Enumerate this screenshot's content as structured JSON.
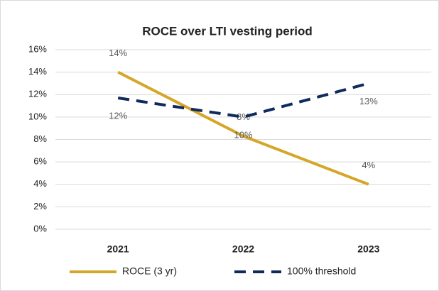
{
  "chart_data": {
    "type": "line",
    "title": "ROCE over LTI vesting period",
    "categories": [
      "2021",
      "2022",
      "2023"
    ],
    "series": [
      {
        "name": "ROCE (3 yr)",
        "color": "#d4a62a",
        "dash": false,
        "values": [
          14,
          8.3,
          4
        ],
        "value_labels": [
          "14%",
          "8%",
          "4%"
        ]
      },
      {
        "name": "100% threshold",
        "color": "#0f2a5c",
        "dash": true,
        "values": [
          11.7,
          10,
          13
        ],
        "value_labels": [
          "12%",
          "10%",
          "13%"
        ]
      }
    ],
    "ylim": [
      0,
      16
    ],
    "yticks": [
      {
        "value": 0,
        "label": "0%"
      },
      {
        "value": 2,
        "label": "2%"
      },
      {
        "value": 4,
        "label": "4%"
      },
      {
        "value": 6,
        "label": "6%"
      },
      {
        "value": 8,
        "label": "8%"
      },
      {
        "value": 10,
        "label": "10%"
      },
      {
        "value": 12,
        "label": "12%"
      },
      {
        "value": 14,
        "label": "14%"
      },
      {
        "value": 16,
        "label": "16%"
      }
    ],
    "grid": true,
    "legend": "bottom"
  }
}
